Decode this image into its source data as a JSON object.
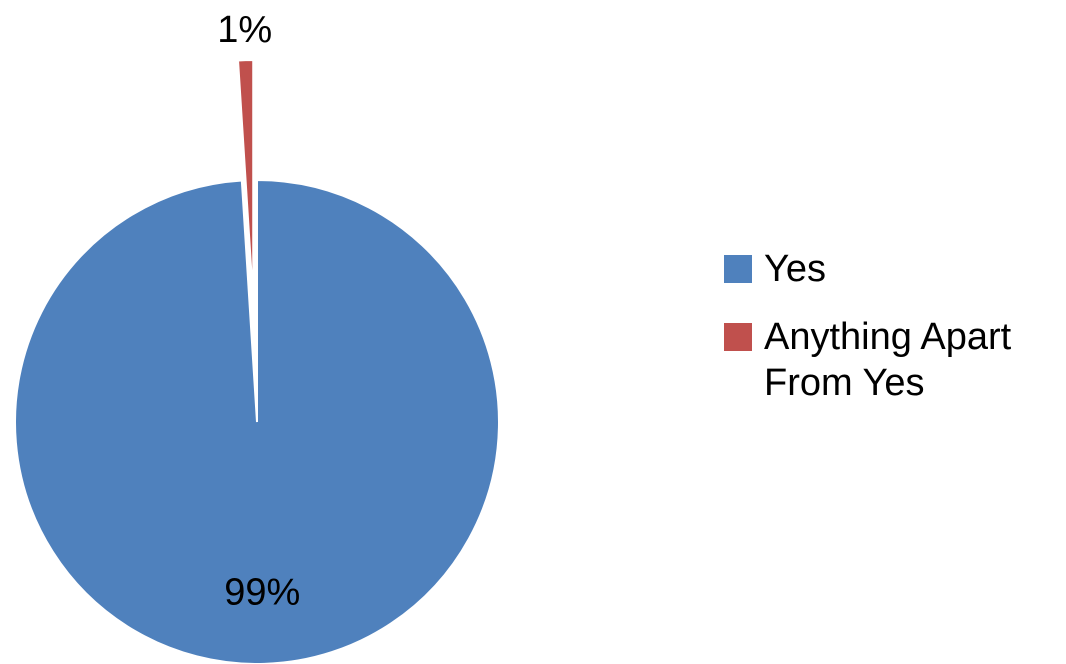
{
  "chart_data": {
    "type": "pie",
    "categories": [
      "Yes",
      "Anything Apart From Yes"
    ],
    "values": [
      99,
      1
    ],
    "data_labels": [
      "99%",
      "1%"
    ],
    "colors": [
      "#4f81bd",
      "#c0504d"
    ],
    "exploded": [
      false,
      true
    ],
    "legend_position": "right",
    "title": ""
  },
  "legend": {
    "items": [
      {
        "label": "Yes",
        "color": "#4f81bd"
      },
      {
        "label": "Anything Apart From Yes",
        "color": "#c0504d"
      }
    ]
  }
}
